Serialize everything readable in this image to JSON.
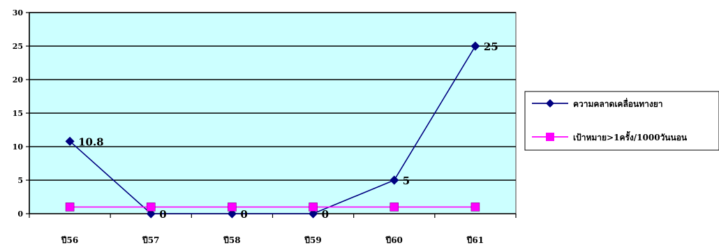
{
  "chart_data": {
    "type": "line",
    "title": "",
    "xlabel": "",
    "ylabel": "",
    "categories": [
      "ปี56",
      "ปี57",
      "ปี58",
      "ปี59",
      "ปี60",
      "ปี61"
    ],
    "ylim": [
      0,
      30
    ],
    "yticks": [
      0,
      5,
      10,
      15,
      20,
      25,
      30
    ],
    "grid": true,
    "legend": "right",
    "plot_background": "#ccffff",
    "series": [
      {
        "name": "ความคลาดเคลื่อนทางยา",
        "values": [
          10.8,
          0,
          0,
          0,
          5,
          25
        ],
        "data_labels": [
          "10.8",
          "0",
          "0",
          "0",
          "5",
          "25"
        ],
        "color": "#000080",
        "marker": "diamond"
      },
      {
        "name": "เป้าหมาย>1ครั้ง/1000วันนอน",
        "values": [
          1,
          1,
          1,
          1,
          1,
          1
        ],
        "color": "#ff00ff",
        "marker": "square"
      }
    ]
  }
}
